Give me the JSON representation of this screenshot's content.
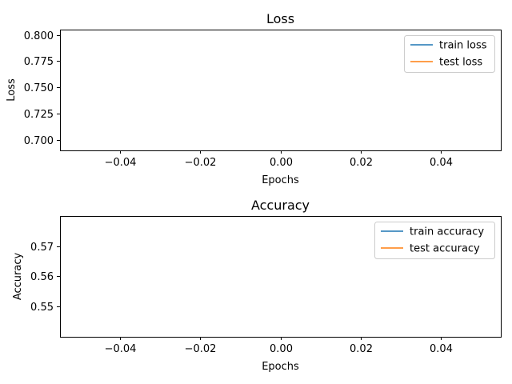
{
  "chart_data": [
    {
      "type": "line",
      "title": "Loss",
      "xlabel": "Epochs",
      "ylabel": "Loss",
      "xlim": [
        -0.055,
        0.055
      ],
      "ylim": [
        0.69,
        0.805
      ],
      "xticks": [
        -0.04,
        -0.02,
        0.0,
        0.02,
        0.04
      ],
      "xtick_labels": [
        "−0.04",
        "−0.02",
        "0.00",
        "0.02",
        "0.04"
      ],
      "yticks": [
        0.7,
        0.725,
        0.75,
        0.775,
        0.8
      ],
      "ytick_labels": [
        "0.700",
        "0.725",
        "0.750",
        "0.775",
        "0.800"
      ],
      "grid": false,
      "legend_position": "upper right",
      "series": [
        {
          "name": "train loss",
          "color": "#1f77b4",
          "x": [],
          "y": []
        },
        {
          "name": "test loss",
          "color": "#ff7f0e",
          "x": [],
          "y": []
        }
      ]
    },
    {
      "type": "line",
      "title": "Accuracy",
      "xlabel": "Epochs",
      "ylabel": "Accuracy",
      "xlim": [
        -0.055,
        0.055
      ],
      "ylim": [
        0.54,
        0.58
      ],
      "xticks": [
        -0.04,
        -0.02,
        0.0,
        0.02,
        0.04
      ],
      "xtick_labels": [
        "−0.04",
        "−0.02",
        "0.00",
        "0.02",
        "0.04"
      ],
      "yticks": [
        0.55,
        0.56,
        0.57
      ],
      "ytick_labels": [
        "0.55",
        "0.56",
        "0.57"
      ],
      "grid": false,
      "legend_position": "upper right",
      "series": [
        {
          "name": "train accuracy",
          "color": "#1f77b4",
          "x": [],
          "y": []
        },
        {
          "name": "test accuracy",
          "color": "#ff7f0e",
          "x": [],
          "y": []
        }
      ]
    }
  ]
}
